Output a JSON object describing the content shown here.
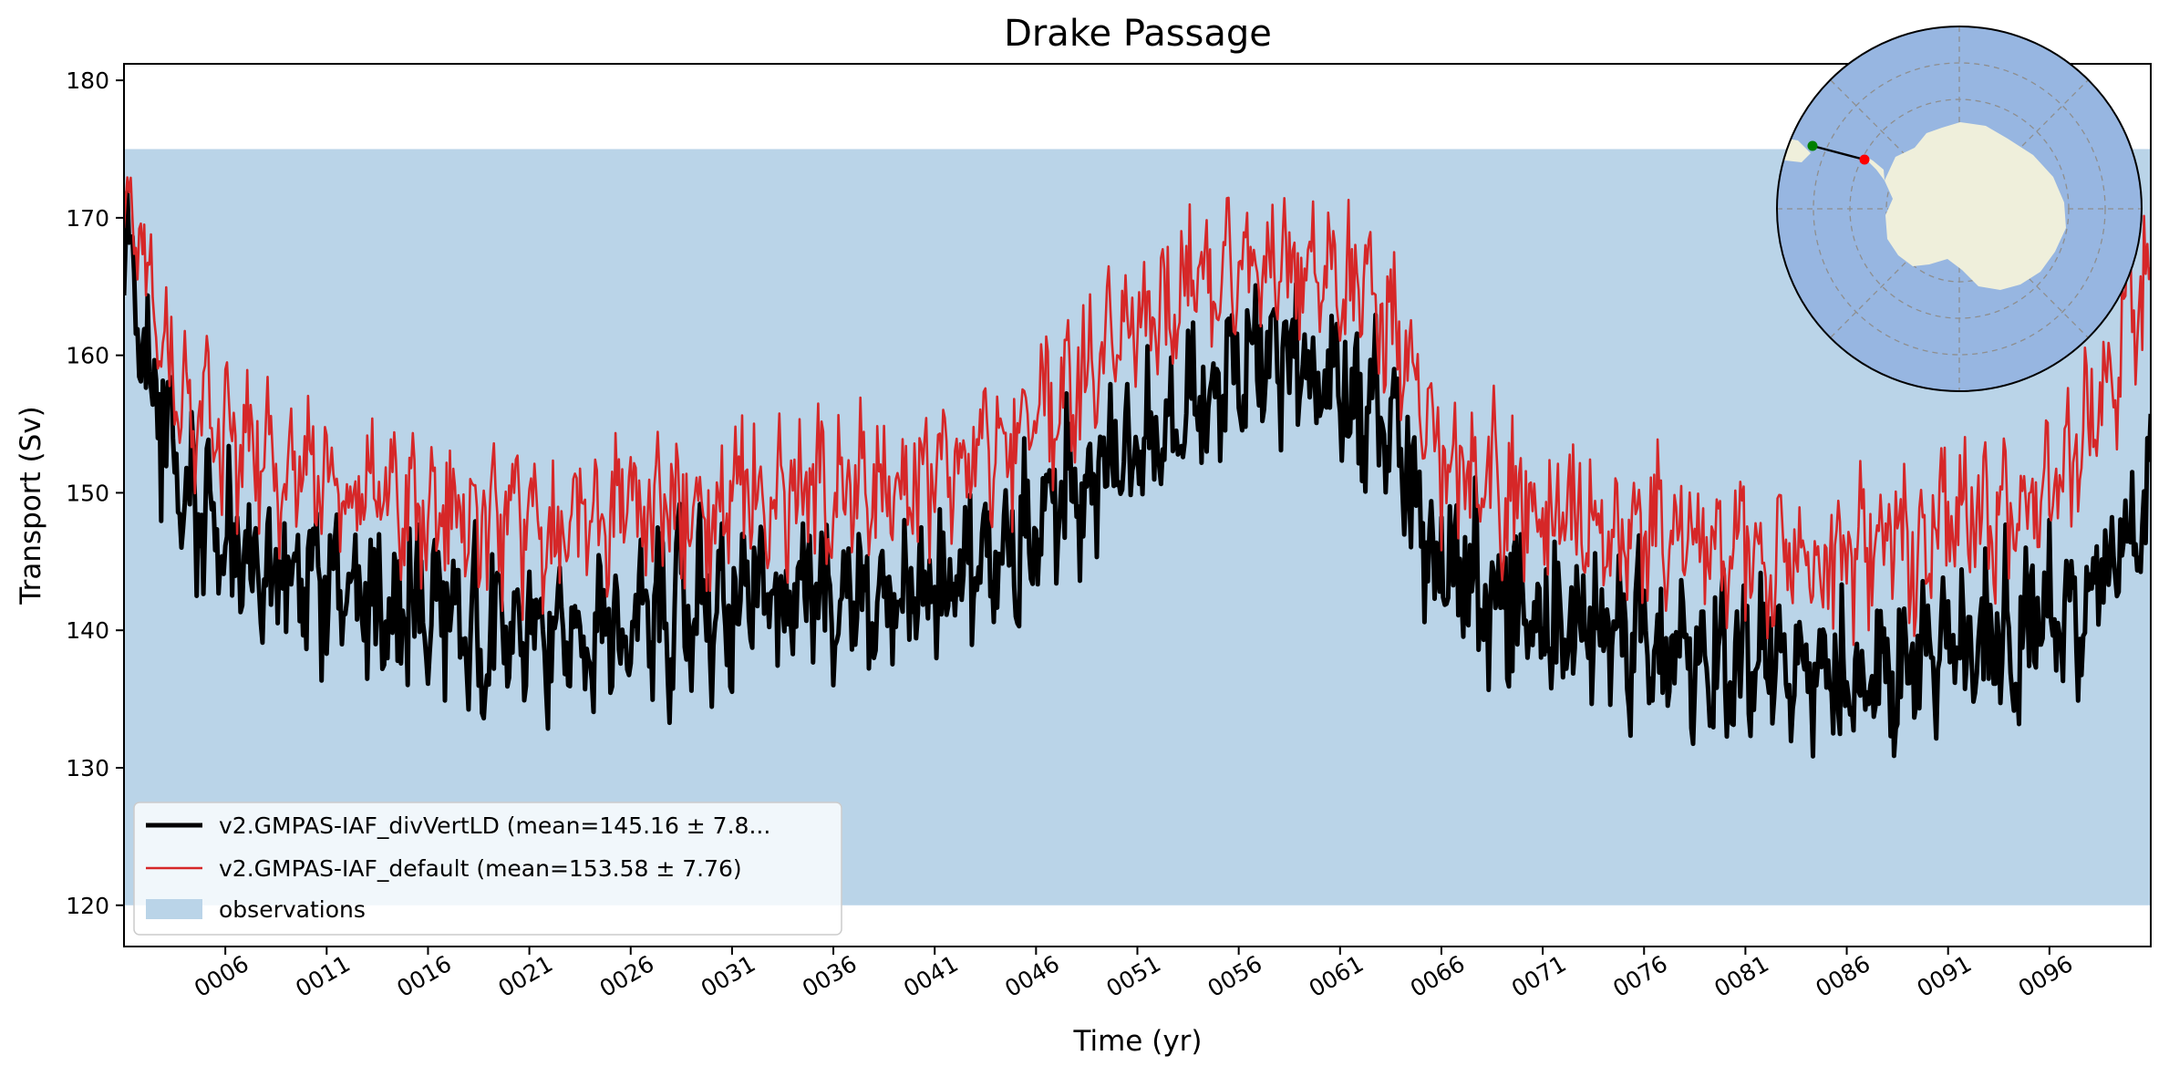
{
  "chart_data": {
    "type": "line",
    "title": "Drake Passage",
    "xlabel": "Time (yr)",
    "ylabel": "Transport (Sv)",
    "xlim": [
      1,
      101
    ],
    "ylim": [
      117,
      181.2
    ],
    "grid": false,
    "x_ticks": [
      6,
      11,
      16,
      21,
      26,
      31,
      36,
      41,
      46,
      51,
      56,
      61,
      66,
      71,
      76,
      81,
      86,
      91,
      96
    ],
    "x_tick_labels": [
      "0006",
      "0011",
      "0016",
      "0021",
      "0026",
      "0031",
      "0036",
      "0041",
      "0046",
      "0051",
      "0056",
      "0061",
      "0066",
      "0071",
      "0076",
      "0081",
      "0086",
      "0091",
      "0096"
    ],
    "y_ticks": [
      120,
      130,
      140,
      150,
      160,
      170,
      180
    ],
    "y_tick_labels": [
      "120",
      "130",
      "140",
      "150",
      "160",
      "170",
      "180"
    ],
    "legend_position": "lower-left",
    "observations": {
      "label": "observations",
      "y_min": 120,
      "y_max": 175,
      "color": "#bad4e8"
    },
    "series": [
      {
        "name": "v2.GMPAS-IAF_divVertLD (mean=145.16 ± 7.8...",
        "color": "#000000",
        "x": [
          1,
          1.5,
          2,
          3,
          4,
          5,
          6,
          8,
          10,
          12,
          14,
          16,
          18,
          20,
          22,
          25,
          28,
          30,
          32,
          35,
          38,
          40,
          42,
          45,
          47,
          50,
          52,
          54,
          56,
          58,
          60,
          62,
          63,
          64,
          65,
          66,
          68,
          70,
          72,
          75,
          78,
          80,
          82,
          85,
          88,
          90,
          92,
          95,
          98,
          100,
          101
        ],
        "y": [
          169,
          167,
          160,
          155,
          150,
          148,
          146,
          145,
          144,
          143,
          142,
          141,
          140,
          140,
          140,
          140,
          141,
          142,
          142,
          142,
          142,
          143,
          144,
          146,
          149,
          152,
          154,
          156,
          158,
          159,
          158,
          157,
          156,
          153,
          148,
          145,
          143,
          141,
          140,
          139,
          139,
          138,
          137,
          137,
          137,
          138,
          139,
          140,
          142,
          146,
          150
        ]
      },
      {
        "name": "v2.GMPAS-IAF_default (mean=153.58 ± 7.76)",
        "color": "#d62728",
        "x": [
          1,
          1.5,
          2,
          3,
          4,
          5,
          6,
          8,
          10,
          12,
          14,
          16,
          18,
          20,
          22,
          25,
          28,
          30,
          32,
          35,
          38,
          40,
          42,
          45,
          47,
          50,
          52,
          54,
          56,
          58,
          60,
          62,
          63,
          64,
          65,
          66,
          68,
          70,
          72,
          75,
          78,
          80,
          82,
          85,
          88,
          90,
          92,
          95,
          98,
          100,
          101
        ],
        "y": [
          173,
          171,
          166,
          161,
          157,
          155,
          153,
          152,
          151,
          150,
          149,
          149,
          148,
          148,
          148,
          148,
          149,
          149,
          150,
          150,
          150,
          151,
          152,
          154,
          157,
          161,
          163,
          165,
          166,
          167,
          166,
          165,
          163,
          160,
          156,
          153,
          151,
          149,
          148,
          147,
          147,
          146,
          145,
          145,
          146,
          147,
          148,
          150,
          155,
          162,
          166
        ]
      }
    ],
    "inset_map": {
      "type": "polar-stereographic",
      "section_label": "Drake Passage",
      "start_marker_color": "#008000",
      "end_marker_color": "#ff0000",
      "ocean_color": "#97b6e1",
      "land_color": "#efefdb"
    }
  }
}
